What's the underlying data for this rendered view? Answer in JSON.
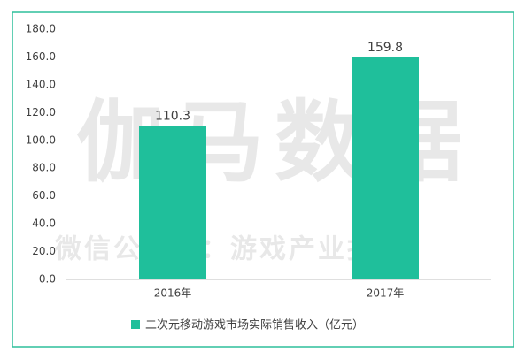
{
  "chart_data": {
    "type": "bar",
    "categories": [
      "2016年",
      "2017年"
    ],
    "series": [
      {
        "name": "二次元移动游戏市场实际销售收入（亿元）",
        "color": "#1fbf9b",
        "values": [
          110.3,
          159.8
        ]
      }
    ],
    "ylim": [
      0,
      180
    ],
    "yticks": [
      {
        "value": 0,
        "label": "0.0"
      },
      {
        "value": 20,
        "label": "20.0"
      },
      {
        "value": 40,
        "label": "40.0"
      },
      {
        "value": 60,
        "label": "60.0"
      },
      {
        "value": 80,
        "label": "80.0"
      },
      {
        "value": 100,
        "label": "100.0"
      },
      {
        "value": 120,
        "label": "120.0"
      },
      {
        "value": 140,
        "label": "140.0"
      },
      {
        "value": 160,
        "label": "160.0"
      },
      {
        "value": 180,
        "label": "180.0"
      }
    ],
    "grid": false,
    "legend": "bottom",
    "watermark": [
      "伽马数据",
      "微信公众号：游戏产业报告"
    ]
  }
}
